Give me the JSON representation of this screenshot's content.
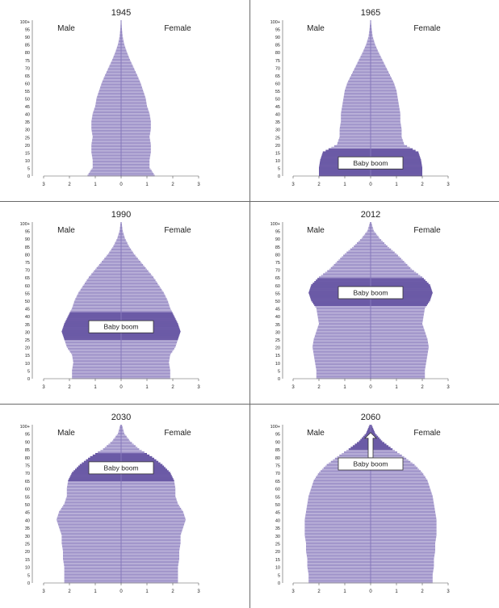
{
  "figure": {
    "colors": {
      "bar_light": "#b9b0d8",
      "bar_mid": "#9f93c9",
      "bar_boom": "#6b5aa6",
      "boom_edge": "#4d3f88",
      "axis": "#555555",
      "divider": "#6a6a6a"
    },
    "y_tick_labels": [
      "0",
      "5",
      "10",
      "15",
      "20",
      "25",
      "30",
      "35",
      "40",
      "45",
      "50",
      "55",
      "60",
      "65",
      "70",
      "75",
      "80",
      "85",
      "90",
      "95",
      "100+"
    ],
    "x_tick_labels": [
      "3",
      "2",
      "1",
      "0",
      "1",
      "2",
      "3"
    ]
  },
  "chart_data": [
    {
      "type": "bar",
      "title": "1945",
      "left_label": "Male",
      "right_label": "Female",
      "x_range": [
        -3,
        3
      ],
      "y_range": [
        0,
        100
      ],
      "age_groups": [
        0,
        5,
        10,
        15,
        20,
        25,
        30,
        35,
        40,
        45,
        50,
        55,
        60,
        65,
        70,
        75,
        80,
        85,
        90,
        95,
        100
      ],
      "series": [
        {
          "name": "Male",
          "values": [
            1.3,
            1.1,
            1.1,
            1.15,
            1.15,
            1.1,
            1.15,
            1.15,
            1.1,
            1.0,
            0.95,
            0.85,
            0.75,
            0.62,
            0.48,
            0.34,
            0.22,
            0.12,
            0.06,
            0.03,
            0.01
          ]
        },
        {
          "name": "Female",
          "values": [
            1.3,
            1.1,
            1.1,
            1.15,
            1.15,
            1.1,
            1.15,
            1.15,
            1.1,
            1.0,
            0.95,
            0.85,
            0.75,
            0.62,
            0.48,
            0.34,
            0.22,
            0.12,
            0.06,
            0.03,
            0.01
          ]
        }
      ],
      "annotation": null
    },
    {
      "type": "bar",
      "title": "1965",
      "left_label": "Male",
      "right_label": "Female",
      "x_range": [
        -3,
        3
      ],
      "y_range": [
        0,
        100
      ],
      "age_groups": [
        0,
        5,
        10,
        15,
        20,
        25,
        30,
        35,
        40,
        45,
        50,
        55,
        60,
        65,
        70,
        75,
        80,
        85,
        90,
        95,
        100
      ],
      "series": [
        {
          "name": "Male",
          "values": [
            2.0,
            2.0,
            1.95,
            1.85,
            1.3,
            1.2,
            1.2,
            1.15,
            1.15,
            1.1,
            1.05,
            1.0,
            0.9,
            0.75,
            0.6,
            0.45,
            0.3,
            0.17,
            0.08,
            0.04,
            0.01
          ]
        },
        {
          "name": "Female",
          "values": [
            2.0,
            2.0,
            1.95,
            1.85,
            1.3,
            1.2,
            1.2,
            1.15,
            1.15,
            1.1,
            1.05,
            1.0,
            0.9,
            0.75,
            0.6,
            0.45,
            0.3,
            0.17,
            0.08,
            0.04,
            0.01
          ]
        }
      ],
      "annotation": {
        "label": "Baby boom",
        "age_from": 0,
        "age_to": 17,
        "arrow": false
      }
    },
    {
      "type": "bar",
      "title": "1990",
      "left_label": "Male",
      "right_label": "Female",
      "x_range": [
        -3,
        3
      ],
      "y_range": [
        0,
        100
      ],
      "age_groups": [
        0,
        5,
        10,
        15,
        20,
        25,
        30,
        35,
        40,
        45,
        50,
        55,
        60,
        65,
        70,
        75,
        80,
        85,
        90,
        95,
        100
      ],
      "series": [
        {
          "name": "Male",
          "values": [
            1.9,
            1.9,
            1.85,
            1.9,
            2.1,
            2.2,
            2.3,
            2.2,
            2.05,
            1.9,
            1.8,
            1.65,
            1.45,
            1.25,
            1.0,
            0.75,
            0.5,
            0.3,
            0.15,
            0.06,
            0.02
          ]
        },
        {
          "name": "Female",
          "values": [
            1.9,
            1.9,
            1.85,
            1.9,
            2.1,
            2.2,
            2.3,
            2.2,
            2.05,
            1.9,
            1.8,
            1.65,
            1.45,
            1.25,
            1.0,
            0.75,
            0.5,
            0.3,
            0.15,
            0.06,
            0.02
          ]
        }
      ],
      "annotation": {
        "label": "Baby boom",
        "age_from": 25,
        "age_to": 42,
        "arrow": false
      }
    },
    {
      "type": "bar",
      "title": "2012",
      "left_label": "Male",
      "right_label": "Female",
      "x_range": [
        -3,
        3
      ],
      "y_range": [
        0,
        100
      ],
      "age_groups": [
        0,
        5,
        10,
        15,
        20,
        25,
        30,
        35,
        40,
        45,
        50,
        55,
        60,
        65,
        70,
        75,
        80,
        85,
        90,
        95,
        100
      ],
      "series": [
        {
          "name": "Male",
          "values": [
            2.1,
            2.1,
            2.15,
            2.2,
            2.25,
            2.2,
            2.1,
            2.0,
            2.05,
            2.1,
            2.3,
            2.4,
            2.3,
            2.0,
            1.6,
            1.3,
            1.0,
            0.65,
            0.35,
            0.12,
            0.03
          ]
        },
        {
          "name": "Female",
          "values": [
            2.1,
            2.1,
            2.15,
            2.2,
            2.25,
            2.2,
            2.1,
            2.0,
            2.05,
            2.1,
            2.3,
            2.4,
            2.3,
            2.0,
            1.6,
            1.3,
            1.0,
            0.65,
            0.35,
            0.12,
            0.03
          ]
        }
      ],
      "annotation": {
        "label": "Baby boom",
        "age_from": 47,
        "age_to": 64,
        "arrow": false
      }
    },
    {
      "type": "bar",
      "title": "2030",
      "left_label": "Male",
      "right_label": "Female",
      "x_range": [
        -3,
        3
      ],
      "y_range": [
        0,
        100
      ],
      "age_groups": [
        0,
        5,
        10,
        15,
        20,
        25,
        30,
        35,
        40,
        45,
        50,
        55,
        60,
        65,
        70,
        75,
        80,
        85,
        90,
        95,
        100
      ],
      "series": [
        {
          "name": "Male",
          "values": [
            2.2,
            2.2,
            2.2,
            2.25,
            2.25,
            2.3,
            2.3,
            2.4,
            2.5,
            2.4,
            2.2,
            2.1,
            2.1,
            2.05,
            1.9,
            1.6,
            1.2,
            0.7,
            0.35,
            0.12,
            0.04
          ]
        },
        {
          "name": "Female",
          "values": [
            2.2,
            2.2,
            2.2,
            2.25,
            2.25,
            2.3,
            2.3,
            2.4,
            2.5,
            2.4,
            2.2,
            2.1,
            2.1,
            2.05,
            1.9,
            1.6,
            1.2,
            0.7,
            0.35,
            0.12,
            0.04
          ]
        }
      ],
      "annotation": {
        "label": "Baby boom",
        "age_from": 65,
        "age_to": 82,
        "arrow": false
      }
    },
    {
      "type": "bar",
      "title": "2060",
      "left_label": "Male",
      "right_label": "Female",
      "x_range": [
        -3,
        3
      ],
      "y_range": [
        0,
        100
      ],
      "age_groups": [
        0,
        5,
        10,
        15,
        20,
        25,
        30,
        35,
        40,
        45,
        50,
        55,
        60,
        65,
        70,
        75,
        80,
        85,
        90,
        95,
        100
      ],
      "series": [
        {
          "name": "Male",
          "values": [
            2.4,
            2.4,
            2.45,
            2.45,
            2.5,
            2.5,
            2.55,
            2.55,
            2.55,
            2.5,
            2.45,
            2.4,
            2.3,
            2.2,
            2.0,
            1.7,
            1.3,
            0.85,
            0.45,
            0.18,
            0.05
          ]
        },
        {
          "name": "Female",
          "values": [
            2.4,
            2.4,
            2.45,
            2.45,
            2.5,
            2.5,
            2.55,
            2.55,
            2.55,
            2.5,
            2.45,
            2.4,
            2.3,
            2.2,
            2.0,
            1.7,
            1.3,
            0.85,
            0.45,
            0.18,
            0.05
          ]
        }
      ],
      "annotation": {
        "label": "Baby boom",
        "age_from": 85,
        "age_to": 100,
        "arrow": true
      }
    }
  ]
}
